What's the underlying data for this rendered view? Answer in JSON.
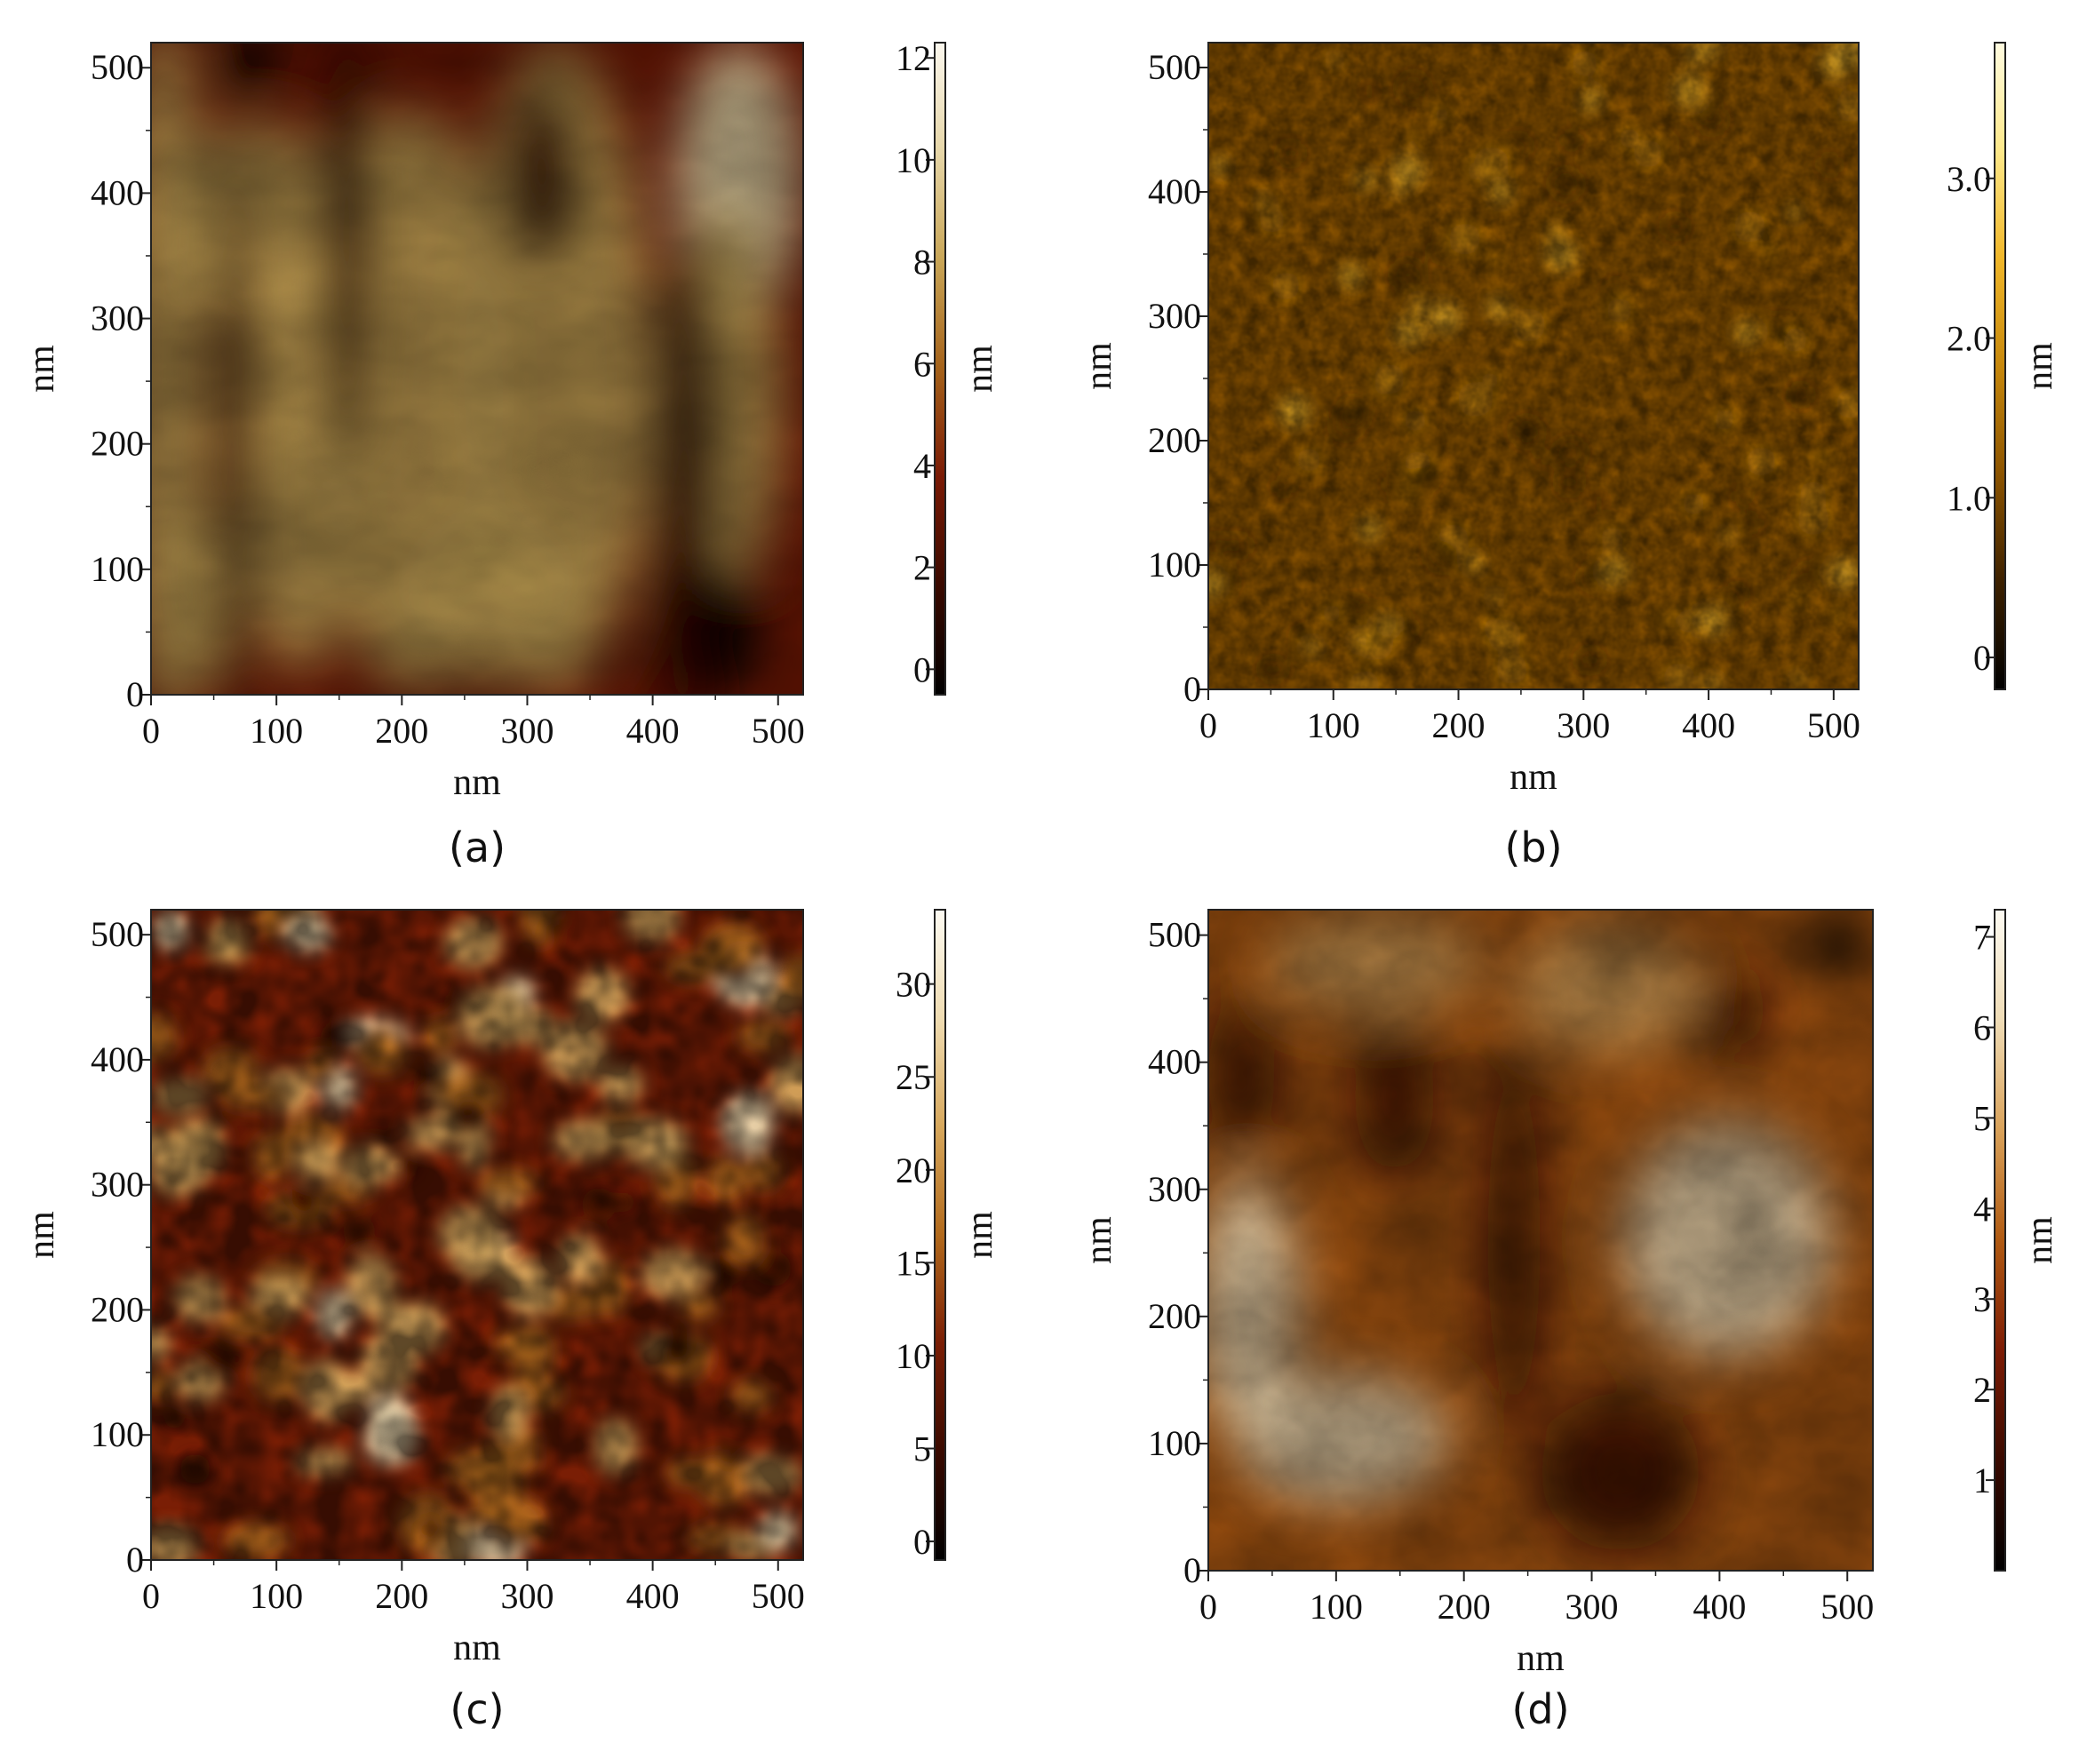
{
  "panels": [
    {
      "id": "a",
      "label": "(a)",
      "x_axis_label": "nm",
      "y_axis_label": "nm",
      "colorbar_unit": "nm",
      "x_ticks": [
        "0",
        "100",
        "200",
        "300",
        "400",
        "500"
      ],
      "y_ticks": [
        "0",
        "100",
        "200",
        "300",
        "400",
        "500"
      ],
      "colorbar_ticks": [
        "0",
        "2",
        "4",
        "6",
        "8",
        "10",
        "12"
      ],
      "colormap": [
        "#000000",
        "#3a0a00",
        "#7a1a05",
        "#a5621a",
        "#c9a657",
        "#e6d6a8",
        "#fbf7ee"
      ]
    },
    {
      "id": "b",
      "label": "(b)",
      "x_axis_label": "nm",
      "y_axis_label": "nm",
      "colorbar_unit": "nm",
      "x_ticks": [
        "0",
        "100",
        "200",
        "300",
        "400",
        "500"
      ],
      "y_ticks": [
        "0",
        "100",
        "200",
        "300",
        "400",
        "500"
      ],
      "colorbar_ticks": [
        "0",
        "1.0",
        "2.0",
        "3.0"
      ],
      "colormap": [
        "#000000",
        "#3d2100",
        "#8c5400",
        "#c7880c",
        "#f0b72a",
        "#fde88a",
        "#fffbe0"
      ]
    },
    {
      "id": "c",
      "label": "(c)",
      "x_axis_label": "nm",
      "y_axis_label": "nm",
      "colorbar_unit": "nm",
      "x_ticks": [
        "0",
        "100",
        "200",
        "300",
        "400",
        "500"
      ],
      "y_ticks": [
        "0",
        "100",
        "200",
        "300",
        "400",
        "500"
      ],
      "colorbar_ticks": [
        "0",
        "5",
        "10",
        "15",
        "20",
        "25",
        "30"
      ],
      "colormap": [
        "#000000",
        "#3a0a00",
        "#7a1e05",
        "#b26a1c",
        "#d7a85d",
        "#efdcb2",
        "#fdfaf2"
      ]
    },
    {
      "id": "d",
      "label": "(d)",
      "x_axis_label": "nm",
      "y_axis_label": "nm",
      "colorbar_unit": "nm",
      "x_ticks": [
        "0",
        "100",
        "200",
        "300",
        "400",
        "500"
      ],
      "y_ticks": [
        "0",
        "100",
        "200",
        "300",
        "400",
        "500"
      ],
      "colorbar_ticks": [
        "1",
        "2",
        "3",
        "4",
        "5",
        "6",
        "7"
      ],
      "colormap": [
        "#000000",
        "#3a0a00",
        "#7d1c05",
        "#b05a12",
        "#d9a25a",
        "#efdcb6",
        "#fdfaf2"
      ]
    }
  ]
}
